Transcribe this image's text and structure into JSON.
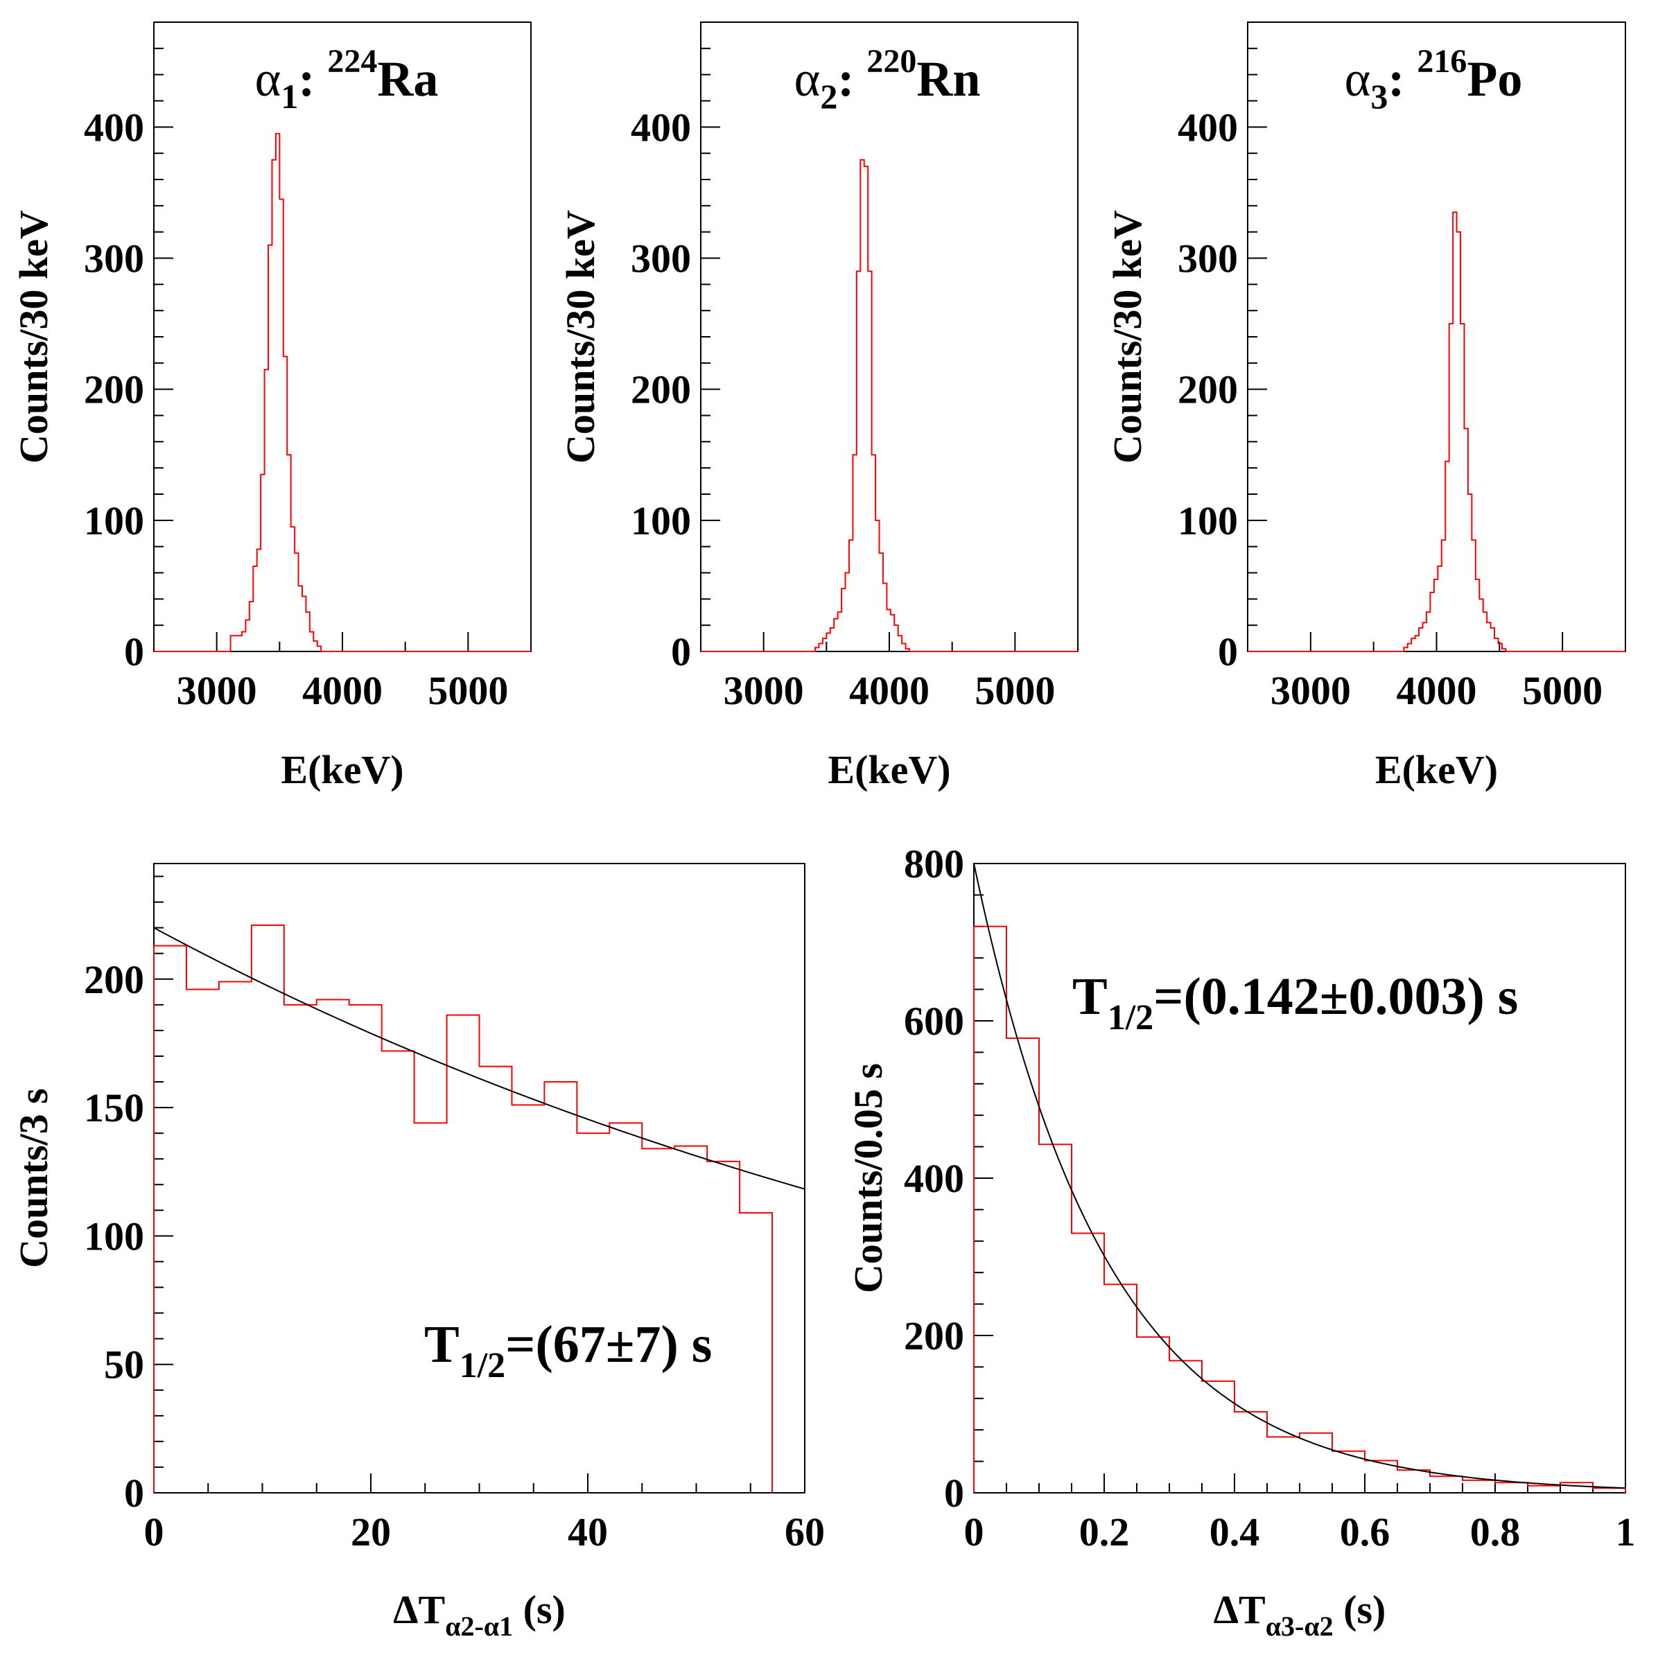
{
  "chart_data": [
    {
      "type": "histogram",
      "title_greek": "α",
      "title_sub": "1",
      "title_sep": ":",
      "title_iso": "224",
      "title_elem": "Ra",
      "xlabel": "E(keV)",
      "ylabel": "Counts/30 keV",
      "xlim": [
        2500,
        5500
      ],
      "ylim": [
        0,
        480
      ],
      "xticks": [
        3000,
        4000,
        5000
      ],
      "xtick_labels": [
        "3000",
        "4000",
        "5000"
      ],
      "yticks": [
        0,
        100,
        200,
        300,
        400
      ],
      "ytick_labels": [
        "0",
        "100",
        "200",
        "300",
        "400"
      ],
      "bin_width": 30,
      "series": [
        {
          "name": "alpha1 energy",
          "color": "#ff0000",
          "bin_start": 3020,
          "values": [
            0,
            0,
            0,
            12,
            12,
            12,
            15,
            24,
            38,
            65,
            78,
            135,
            215,
            310,
            375,
            395,
            345,
            225,
            150,
            95,
            75,
            50,
            42,
            30,
            15,
            8,
            4,
            0,
            0,
            0
          ]
        }
      ]
    },
    {
      "type": "histogram",
      "title_greek": "α",
      "title_sub": "2",
      "title_sep": ":",
      "title_iso": "220",
      "title_elem": "Rn",
      "xlabel": "E(keV)",
      "ylabel": "Counts/30 keV",
      "xlim": [
        2500,
        5500
      ],
      "ylim": [
        0,
        480
      ],
      "xticks": [
        3000,
        4000,
        5000
      ],
      "xtick_labels": [
        "3000",
        "4000",
        "5000"
      ],
      "yticks": [
        0,
        100,
        200,
        300,
        400
      ],
      "ytick_labels": [
        "0",
        "100",
        "200",
        "300",
        "400"
      ],
      "bin_width": 30,
      "series": [
        {
          "name": "alpha2 energy",
          "color": "#ff0000",
          "bin_start": 3380,
          "values": [
            0,
            3,
            6,
            10,
            14,
            18,
            25,
            30,
            48,
            60,
            85,
            150,
            290,
            375,
            370,
            290,
            150,
            100,
            75,
            52,
            32,
            28,
            20,
            12,
            6,
            2,
            0
          ]
        }
      ]
    },
    {
      "type": "histogram",
      "title_greek": "α",
      "title_sub": "3",
      "title_sep": ":",
      "title_iso": "216",
      "title_elem": "Po",
      "xlabel": "E(keV)",
      "ylabel": "Counts/30 keV",
      "xlim": [
        2500,
        5500
      ],
      "ylim": [
        0,
        480
      ],
      "xticks": [
        3000,
        4000,
        5000
      ],
      "xtick_labels": [
        "3000",
        "4000",
        "5000"
      ],
      "yticks": [
        0,
        100,
        200,
        300,
        400
      ],
      "ytick_labels": [
        "0",
        "100",
        "200",
        "300",
        "400"
      ],
      "bin_width": 30,
      "series": [
        {
          "name": "alpha3 energy",
          "color": "#ff0000",
          "bin_start": 3710,
          "values": [
            0,
            3,
            6,
            10,
            12,
            18,
            22,
            30,
            45,
            55,
            65,
            85,
            145,
            250,
            335,
            320,
            250,
            170,
            120,
            85,
            55,
            40,
            30,
            22,
            18,
            10,
            6,
            2,
            0
          ]
        }
      ]
    },
    {
      "type": "histogram",
      "xlabel_prefix": "ΔT",
      "xlabel_sub": "α2-α1",
      "xlabel_suffix": " (s)",
      "ylabel": "Counts/3 s",
      "xlim": [
        0,
        60
      ],
      "ylim": [
        0,
        245
      ],
      "xticks": [
        0,
        20,
        40,
        60
      ],
      "xtick_labels": [
        "0",
        "20",
        "40",
        "60"
      ],
      "yticks": [
        0,
        50,
        100,
        150,
        200
      ],
      "ytick_labels": [
        "0",
        "50",
        "100",
        "150",
        "200"
      ],
      "bin_width": 3,
      "annotation_main": "T",
      "annotation_sub": "1/2",
      "annotation_rest": "=(67±7) s",
      "series": [
        {
          "name": "time difference alpha2-alpha1",
          "color": "#ff0000",
          "bin_start": 0,
          "values": [
            213,
            196,
            199,
            221,
            190,
            192,
            190,
            172,
            144,
            186,
            166,
            151,
            160,
            140,
            144,
            134,
            135,
            129,
            109
          ]
        }
      ],
      "fit": {
        "name": "exponential fit",
        "color": "#000000",
        "amplitude": 220,
        "half_life": 67
      }
    },
    {
      "type": "histogram",
      "xlabel_prefix": "ΔT",
      "xlabel_sub": "α3-α2",
      "xlabel_suffix": " (s)",
      "ylabel": "Counts/0.05 s",
      "xlim": [
        0,
        1
      ],
      "ylim": [
        0,
        800
      ],
      "xticks": [
        0,
        0.2,
        0.4,
        0.6,
        0.8,
        1
      ],
      "xtick_labels": [
        "0",
        "0.2",
        "0.4",
        "0.6",
        "0.8",
        "1"
      ],
      "yticks": [
        0,
        200,
        400,
        600,
        800
      ],
      "ytick_labels": [
        "0",
        "200",
        "400",
        "600",
        "800"
      ],
      "bin_width": 0.05,
      "annotation_main": "T",
      "annotation_sub": "1/2",
      "annotation_rest": "=(0.142±0.003) s",
      "series": [
        {
          "name": "time difference alpha3-alpha2",
          "color": "#ff0000",
          "bin_start": 0,
          "values": [
            720,
            578,
            443,
            330,
            265,
            198,
            168,
            142,
            103,
            71,
            76,
            53,
            41,
            29,
            21,
            16,
            13,
            9,
            13,
            6
          ]
        }
      ],
      "fit": {
        "name": "exponential fit",
        "color": "#000000",
        "amplitude": 800,
        "half_life": 0.142
      }
    }
  ]
}
